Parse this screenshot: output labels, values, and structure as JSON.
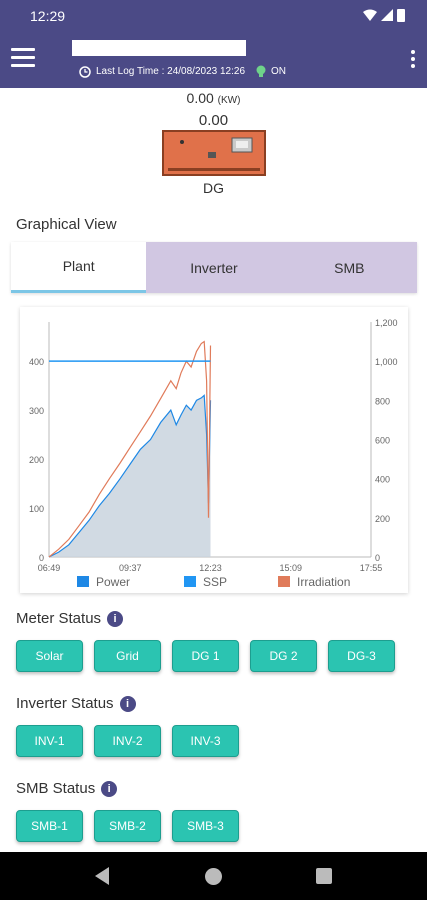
{
  "statusbar": {
    "time": "12:29"
  },
  "appbar": {
    "last_log_time": "Last Log Time : 24/08/2023 12:26",
    "status": "ON"
  },
  "dg": {
    "kw_value": "0.00",
    "kw_unit": "(KW)",
    "value": "0.00",
    "label": "DG"
  },
  "graphical_view": {
    "title": "Graphical View",
    "tabs": [
      {
        "label": "Plant",
        "active": true
      },
      {
        "label": "Inverter",
        "active": false
      },
      {
        "label": "SMB",
        "active": false
      }
    ]
  },
  "chart_data": {
    "type": "area",
    "x_ticks": [
      "06:49",
      "09:37",
      "12:23",
      "15:09",
      "17:55"
    ],
    "y_left_ticks": [
      "0",
      "100",
      "200",
      "300",
      "400"
    ],
    "y_left_lim": [
      0,
      400
    ],
    "y_right_ticks": [
      "0",
      "200",
      "400",
      "600",
      "800",
      "1,000",
      "1,200"
    ],
    "y_right_lim": [
      0,
      1200
    ],
    "legend": [
      "Power",
      "SSP",
      "Irradiation"
    ],
    "legend_placement": "bottom",
    "colors": {
      "power": "#1e88e5",
      "ssp": "#2196f3",
      "irradiation": "#e07b5a",
      "area_fill": "#c9d3de"
    },
    "ssp_value": 400,
    "series": [
      {
        "name": "Power",
        "x": [
          "06:49",
          "07:09",
          "07:30",
          "07:51",
          "08:12",
          "08:33",
          "08:54",
          "09:16",
          "09:37",
          "09:58",
          "10:19",
          "10:40",
          "11:01",
          "11:12",
          "11:22",
          "11:33",
          "11:43",
          "11:54",
          "12:04",
          "12:10",
          "12:15",
          "12:19",
          "12:23"
        ],
        "values": [
          0,
          10,
          25,
          50,
          75,
          105,
          130,
          160,
          190,
          220,
          240,
          275,
          300,
          270,
          290,
          310,
          300,
          320,
          325,
          330,
          250,
          110,
          320
        ]
      },
      {
        "name": "Irradiation",
        "x": [
          "06:49",
          "07:09",
          "07:30",
          "07:51",
          "08:12",
          "08:33",
          "08:54",
          "09:16",
          "09:37",
          "09:58",
          "10:19",
          "10:40",
          "11:01",
          "11:12",
          "11:22",
          "11:33",
          "11:43",
          "11:54",
          "12:04",
          "12:10",
          "12:15",
          "12:19",
          "12:23"
        ],
        "values": [
          0,
          40,
          90,
          160,
          230,
          320,
          400,
          480,
          560,
          640,
          720,
          810,
          900,
          860,
          940,
          1000,
          970,
          1050,
          1090,
          1100,
          900,
          200,
          1080
        ]
      }
    ]
  },
  "meter_status": {
    "title": "Meter Status",
    "buttons": [
      "Solar",
      "Grid",
      "DG 1",
      "DG 2",
      "DG-3"
    ]
  },
  "inverter_status": {
    "title": "Inverter Status",
    "buttons": [
      "INV-1",
      "INV-2",
      "INV-3"
    ]
  },
  "smb_status": {
    "title": "SMB Status",
    "buttons": [
      "SMB-1",
      "SMB-2",
      "SMB-3"
    ]
  }
}
